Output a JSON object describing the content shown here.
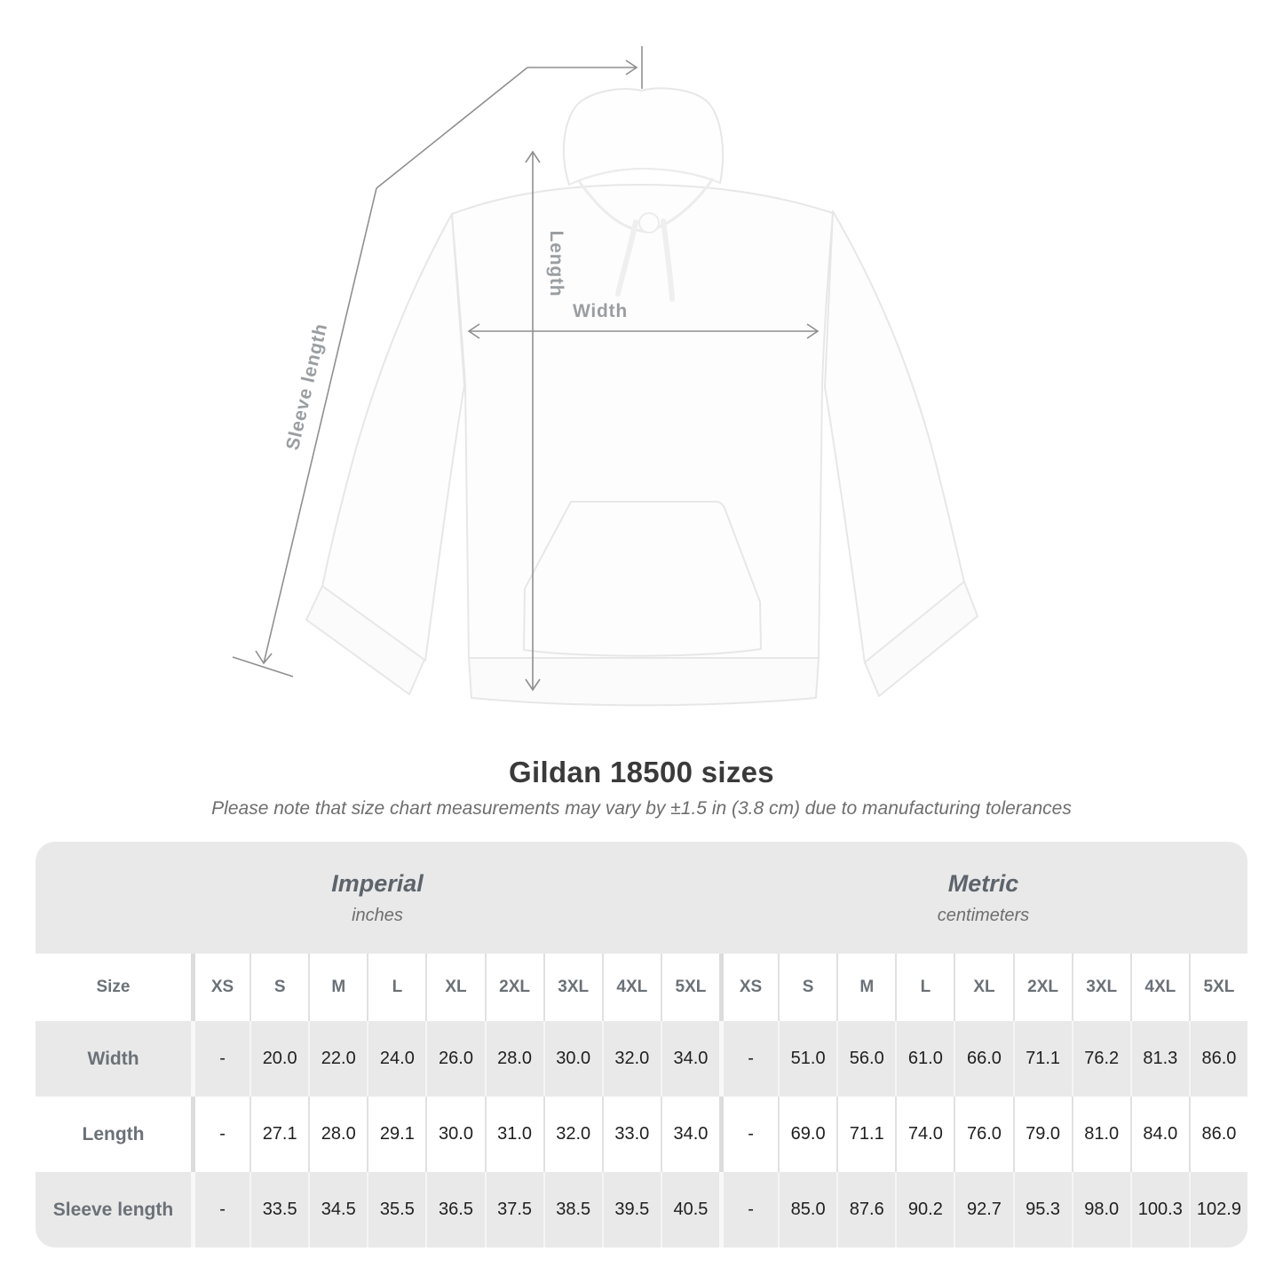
{
  "figure": {
    "length_label": "Length",
    "width_label": "Width",
    "sleeve_label": "Sleeve length"
  },
  "title": "Gildan 18500 sizes",
  "subtitle": "Please note that size chart measurements may vary by ±1.5 in (3.8 cm) due to manufacturing tolerances",
  "chart_data": {
    "type": "table",
    "title": "Gildan 18500 sizes",
    "corner_header": "Size",
    "sections": [
      {
        "name": "Imperial",
        "unit": "inches"
      },
      {
        "name": "Metric",
        "unit": "centimeters"
      }
    ],
    "sizes": [
      "XS",
      "S",
      "M",
      "L",
      "XL",
      "2XL",
      "3XL",
      "4XL",
      "5XL"
    ],
    "rows": [
      {
        "label": "Width",
        "imperial": [
          "-",
          "20.0",
          "22.0",
          "24.0",
          "26.0",
          "28.0",
          "30.0",
          "32.0",
          "34.0"
        ],
        "metric": [
          "-",
          "51.0",
          "56.0",
          "61.0",
          "66.0",
          "71.1",
          "76.2",
          "81.3",
          "86.0"
        ]
      },
      {
        "label": "Length",
        "imperial": [
          "-",
          "27.1",
          "28.0",
          "29.1",
          "30.0",
          "31.0",
          "32.0",
          "33.0",
          "34.0"
        ],
        "metric": [
          "-",
          "69.0",
          "71.1",
          "74.0",
          "76.0",
          "79.0",
          "81.0",
          "84.0",
          "86.0"
        ]
      },
      {
        "label": "Sleeve length",
        "imperial": [
          "-",
          "33.5",
          "34.5",
          "35.5",
          "36.5",
          "37.5",
          "38.5",
          "39.5",
          "40.5"
        ],
        "metric": [
          "-",
          "85.0",
          "87.6",
          "90.2",
          "92.7",
          "95.3",
          "98.0",
          "100.3",
          "102.9"
        ]
      }
    ]
  },
  "colors": {
    "row_alt": "#e9e9e9",
    "arrow": "#8f8f8f",
    "measure_label": "#9b9ea1",
    "title_text": "#3a3a3a",
    "header_text": "#6b7177",
    "value_text": "#1f1f1f"
  }
}
